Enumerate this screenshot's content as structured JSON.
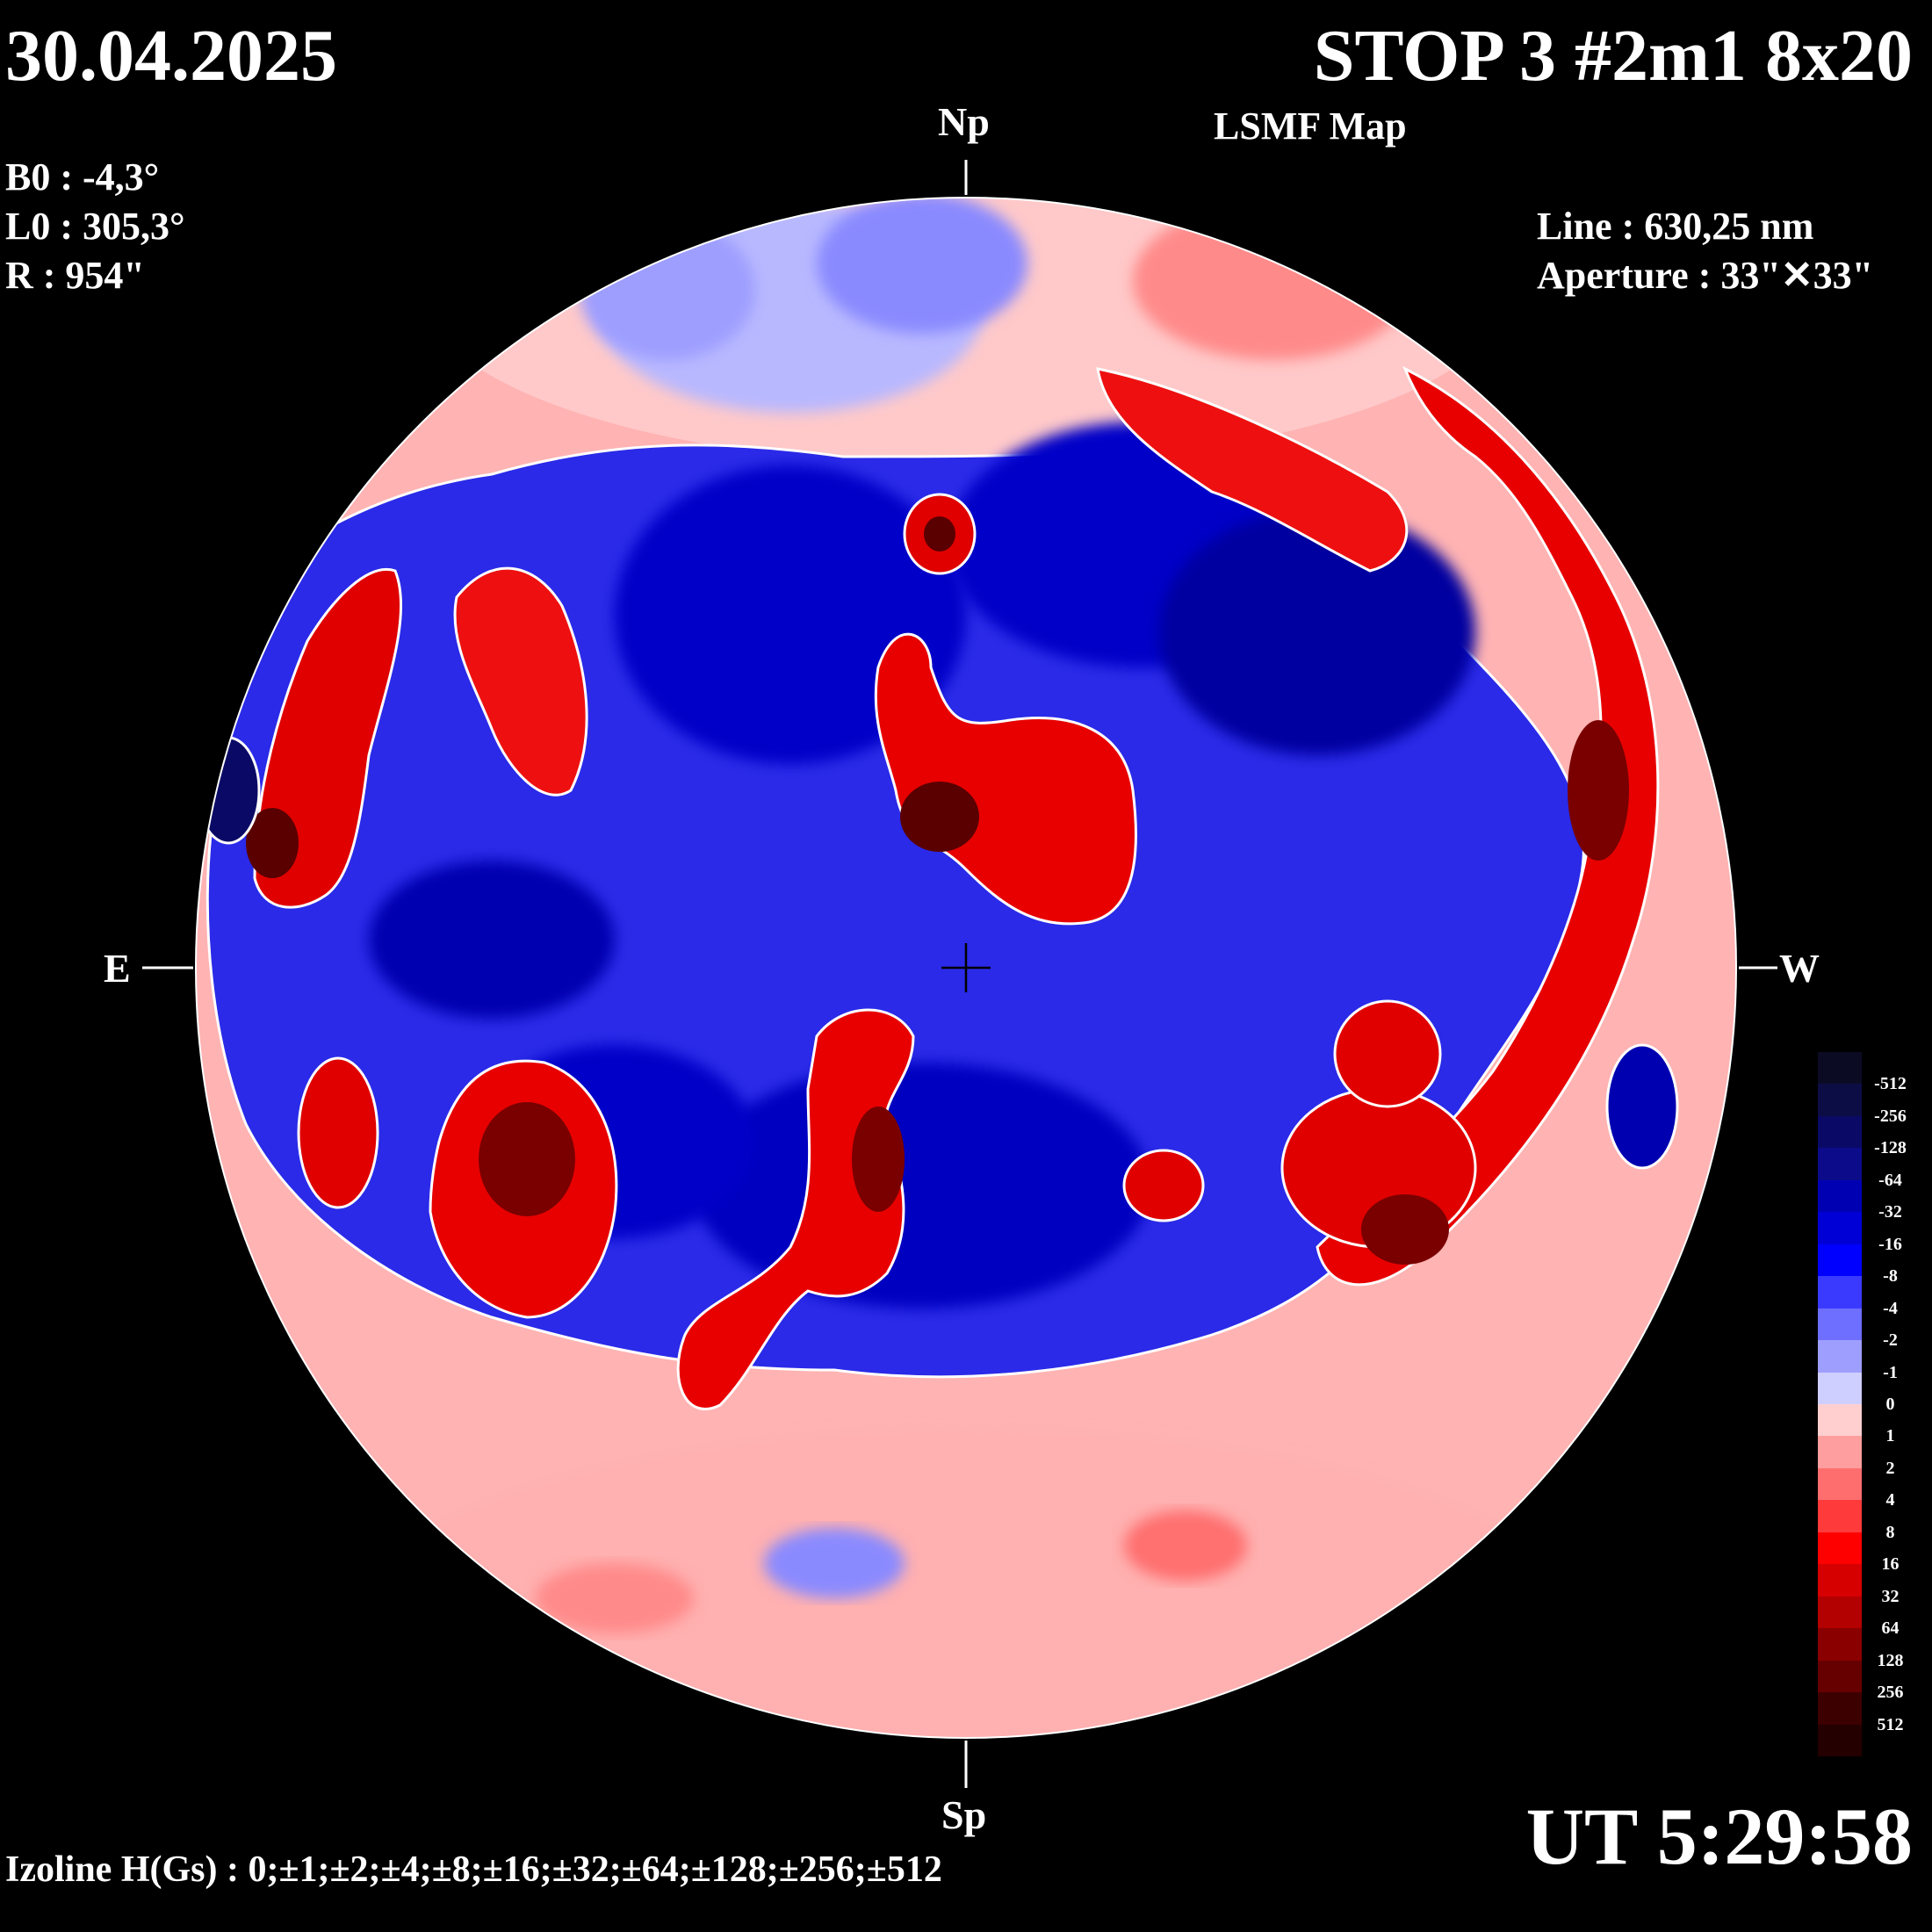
{
  "header": {
    "date": "30.04.2025",
    "title": "STOP 3 #2m1 8x20",
    "subtitle": "LSMF  Map"
  },
  "params_left": {
    "b0": "B0 : -4,3°",
    "l0": "L0 : 305,3°",
    "r": "R  : 954\""
  },
  "params_right": {
    "line": "Line :  630,25 nm",
    "aperture": "Aperture : 33\"✕33\""
  },
  "directions": {
    "north": "Np",
    "south": "Sp",
    "east": "E",
    "west": "W"
  },
  "footer": {
    "izoline": "Izoline H(Gs) : 0;±1;±2;±4;±8;±16;±32;±64;±128;±256;±512",
    "ut": "UT 5:29:58"
  },
  "colors": {
    "background": "#000000",
    "contour": "#ffffff"
  },
  "legend": {
    "labels": [
      "-512",
      "-256",
      "-128",
      "-64",
      "-32",
      "-16",
      "-8",
      "-4",
      "-2",
      "-1",
      "0",
      "1",
      "2",
      "4",
      "8",
      "16",
      "32",
      "64",
      "128",
      "256",
      "512"
    ],
    "colors": [
      "#0b0b24",
      "#0d0d45",
      "#0a0a66",
      "#0c0c8a",
      "#0000b3",
      "#0000d6",
      "#0000ff",
      "#3a3aff",
      "#6e6eff",
      "#9e9eff",
      "#cfcfff",
      "#ffcfcf",
      "#ff9e9e",
      "#ff6e6e",
      "#ff3a3a",
      "#ff0000",
      "#d60000",
      "#b30000",
      "#8a0000",
      "#660000",
      "#3d0000",
      "#240000"
    ]
  },
  "regions": [
    {
      "polarity": "negative",
      "strength": "strong",
      "location": "north-central belt"
    },
    {
      "polarity": "negative",
      "strength": "strong",
      "location": "south-central belt"
    },
    {
      "polarity": "positive",
      "strength": "strong",
      "location": "west limb arc"
    },
    {
      "polarity": "positive",
      "strength": "strong",
      "location": "central north patch"
    },
    {
      "polarity": "positive",
      "strength": "strong",
      "location": "east-south patches"
    },
    {
      "polarity": "positive",
      "strength": "weak",
      "location": "south polar zone"
    },
    {
      "polarity": "mixed",
      "strength": "weak",
      "location": "north polar zone"
    }
  ]
}
